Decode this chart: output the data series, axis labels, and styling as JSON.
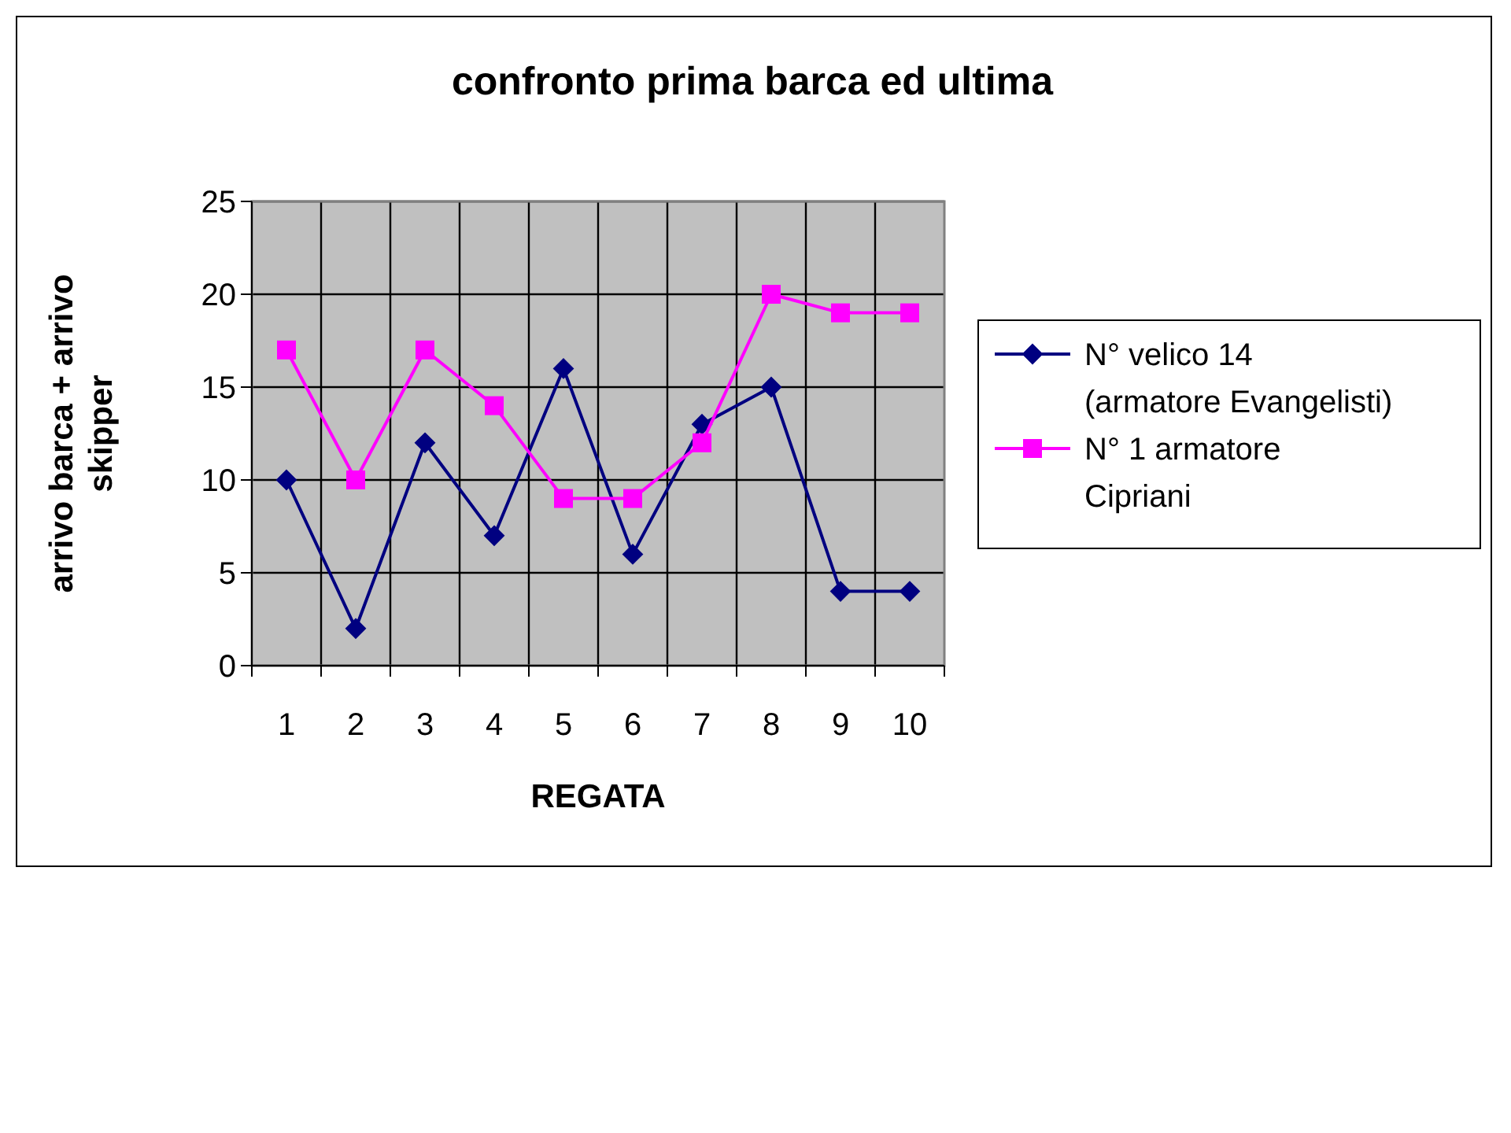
{
  "chart_data": {
    "type": "line",
    "title": "confronto prima barca ed ultima",
    "xlabel": "REGATA",
    "ylabel": "arrivo barca + arrivo skipper",
    "categories": [
      "1",
      "2",
      "3",
      "4",
      "5",
      "6",
      "7",
      "8",
      "9",
      "10"
    ],
    "series": [
      {
        "name": "N° velico 14\n(armatore Evangelisti)",
        "color": "#000080",
        "marker": "diamond",
        "values": [
          10,
          2,
          12,
          7,
          16,
          6,
          13,
          15,
          4,
          4
        ]
      },
      {
        "name": "N° 1 armatore\nCipriani",
        "color": "#ff00ff",
        "marker": "square",
        "values": [
          17,
          10,
          17,
          14,
          9,
          9,
          12,
          20,
          19,
          19
        ]
      }
    ],
    "ylim": [
      0,
      25
    ],
    "yticks": [
      0,
      5,
      10,
      15,
      20,
      25
    ],
    "grid": true,
    "legend": "right"
  }
}
